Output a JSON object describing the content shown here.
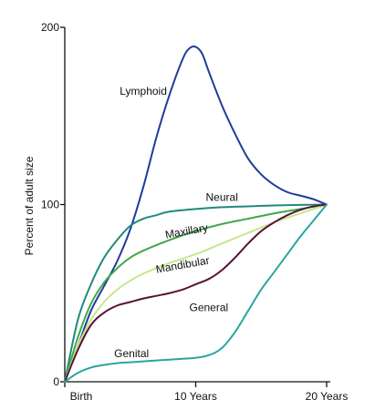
{
  "chart_data": {
    "type": "line",
    "title": "",
    "xlabel": "",
    "ylabel": "Percent of adult size",
    "xlim": [
      0,
      20
    ],
    "ylim": [
      0,
      200
    ],
    "grid": false,
    "legend": "none",
    "x_ticks": [
      {
        "value": 0,
        "label": "Birth"
      },
      {
        "value": 10,
        "label": "10 Years"
      },
      {
        "value": 20,
        "label": "20 Years"
      }
    ],
    "y_ticks": [
      {
        "value": 0,
        "label": "0"
      },
      {
        "value": 100,
        "label": "100"
      },
      {
        "value": 200,
        "label": "200"
      }
    ],
    "series": [
      {
        "name": "Lymphoid",
        "color": "#1f3c9a",
        "label_at": [
          6,
          164
        ],
        "x": [
          0,
          1,
          2,
          3,
          4,
          5,
          6,
          7,
          8,
          9,
          9.5,
          10,
          10.5,
          11,
          12,
          13,
          14,
          15,
          16,
          17,
          18,
          19,
          20
        ],
        "y": [
          0,
          20,
          40,
          54,
          68,
          86,
          110,
          138,
          162,
          182,
          188,
          189,
          185,
          175,
          156,
          140,
          126,
          117,
          111,
          107,
          105,
          103,
          100
        ]
      },
      {
        "name": "Neural",
        "color": "#1f8a7a",
        "label_at": [
          12,
          104
        ],
        "x": [
          0,
          1,
          2,
          3,
          4,
          5,
          6,
          7,
          8,
          10,
          12,
          14,
          16,
          18,
          20
        ],
        "y": [
          0,
          35,
          55,
          70,
          80,
          88,
          92,
          94,
          96,
          97.5,
          98.5,
          99,
          99.5,
          99.8,
          100
        ]
      },
      {
        "name": "Maxillary",
        "color": "#3ea84a",
        "label_at": [
          9.3,
          85
        ],
        "x": [
          0,
          1,
          2,
          3,
          4,
          5,
          6,
          8,
          10,
          12,
          14,
          16,
          18,
          20
        ],
        "y": [
          0,
          25,
          44,
          56,
          64,
          70,
          74,
          80,
          85,
          89,
          92,
          95,
          97.5,
          100
        ]
      },
      {
        "name": "Mandibular",
        "color": "#c5e88a",
        "label_at": [
          9,
          66
        ],
        "x": [
          0,
          1,
          2,
          3,
          4,
          5,
          6,
          8,
          10,
          12,
          14,
          16,
          18,
          20
        ],
        "y": [
          0,
          20,
          35,
          45,
          52,
          57,
          61,
          67,
          72,
          78,
          84,
          90,
          95,
          100
        ]
      },
      {
        "name": "General",
        "color": "#5a1238",
        "label_at": [
          11,
          42
        ],
        "x": [
          0,
          1,
          2,
          3,
          4,
          5,
          6,
          7,
          8,
          9,
          10,
          11,
          12,
          13,
          14,
          15,
          16,
          17,
          18,
          19,
          20
        ],
        "y": [
          0,
          18,
          32,
          39,
          43,
          45,
          47,
          48.5,
          50,
          52,
          55,
          58,
          63,
          70,
          78,
          85,
          90,
          94,
          97,
          99,
          100
        ]
      },
      {
        "name": "Genital",
        "color": "#2aa5a0",
        "label_at": [
          5.1,
          16
        ],
        "x": [
          0,
          1,
          2,
          3,
          4,
          5,
          6,
          7,
          8,
          9,
          10,
          11,
          12,
          13,
          14,
          15,
          16,
          17,
          18,
          19,
          20
        ],
        "y": [
          0,
          5,
          8,
          9.5,
          10.5,
          11,
          11.5,
          12,
          12.5,
          13,
          13.5,
          15,
          19,
          28,
          40,
          52,
          62,
          72,
          82,
          91,
          100
        ]
      }
    ]
  }
}
